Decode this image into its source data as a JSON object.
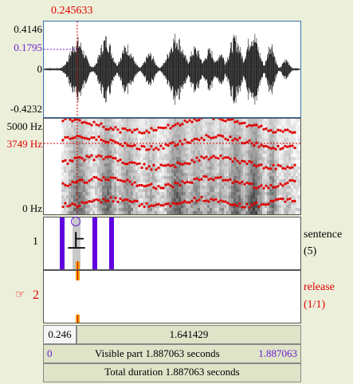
{
  "cursor": {
    "time_label": "0.245633"
  },
  "waveform": {
    "max_label": "0.4146",
    "cursor_value_label": "0.1795",
    "zero_label": "0",
    "min_label": "-0.4232"
  },
  "spectrogram": {
    "top_label": "5000 Hz",
    "cursor_freq_label": "3749 Hz",
    "bottom_label": "0 Hz"
  },
  "tiers": [
    {
      "number": "1",
      "name": "sentence",
      "count": "(5)",
      "interval_text": "上"
    },
    {
      "number": "2",
      "pointer": "☞",
      "name": "release",
      "count": "(1/1)"
    }
  ],
  "time_bar": {
    "selection_start": "0.246",
    "selection_rest": "1.641429",
    "visible_start": "0",
    "visible_part": "Visible part 1.887063 seconds",
    "visible_end": "1.887063",
    "total_duration": "Total duration 1.887063 seconds"
  },
  "colors": {
    "background": "#ecf0da",
    "cursor_red": "#e00000",
    "purple": "#6a1fd1",
    "boundary_blue": "#6000e0",
    "selection_blue": "#1c3f6b",
    "orange": "#f0a000"
  }
}
